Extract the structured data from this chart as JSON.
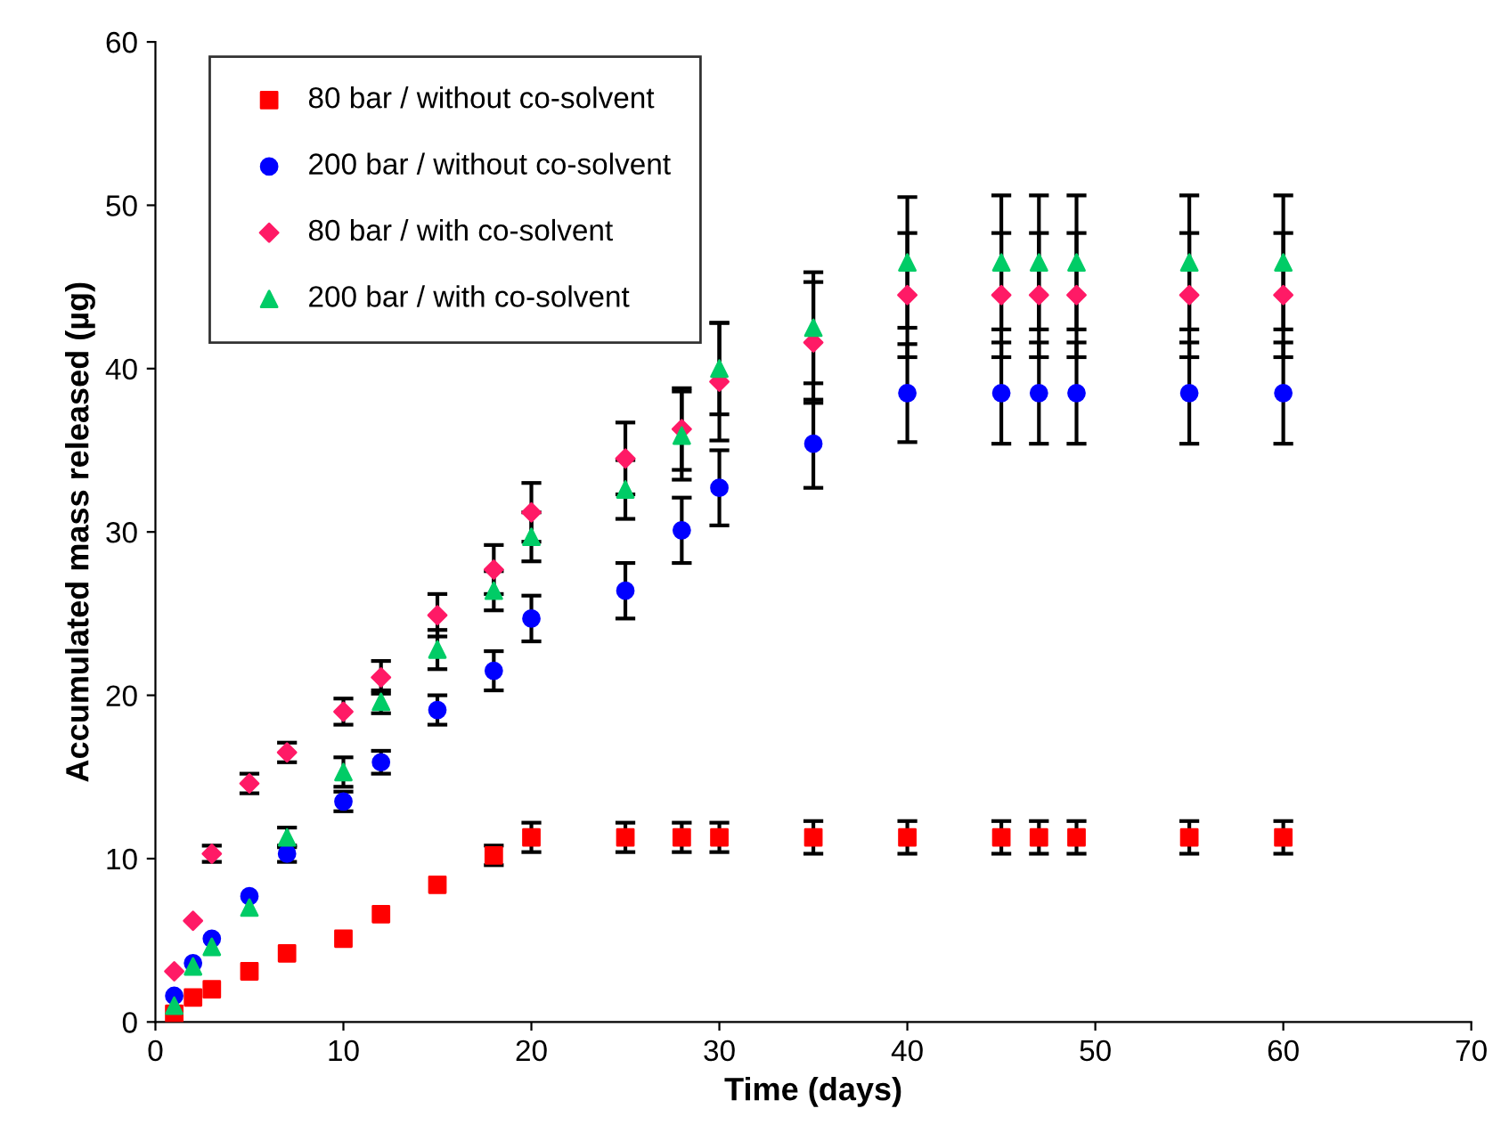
{
  "chart_data": {
    "type": "scatter",
    "xlabel": "Time (days)",
    "ylabel": "Accumulated mass released (µg)",
    "x": [
      1,
      2,
      3,
      5,
      7,
      10,
      12,
      15,
      18,
      20,
      25,
      28,
      30,
      35,
      40,
      45,
      47,
      49,
      55,
      60
    ],
    "xlim": [
      0,
      70
    ],
    "xticks": [
      0,
      10,
      20,
      30,
      40,
      50,
      60,
      70
    ],
    "ylim": [
      0,
      60
    ],
    "yticks": [
      0,
      10,
      20,
      30,
      40,
      50,
      60
    ],
    "grid": false,
    "legend": "top left",
    "series": [
      {
        "name": "80 bar / without co-solvent",
        "color": "#ff0000",
        "marker": "square",
        "values": [
          0.5,
          1.5,
          2.0,
          3.1,
          4.2,
          5.1,
          6.6,
          8.4,
          10.2,
          11.3,
          11.3,
          11.3,
          11.3,
          11.3,
          11.3,
          11.3,
          11.3,
          11.3,
          11.3,
          11.3
        ],
        "errors": [
          null,
          null,
          null,
          null,
          null,
          null,
          null,
          null,
          0.6,
          0.9,
          0.9,
          0.9,
          0.9,
          1.0,
          1.0,
          1.0,
          1.0,
          1.0,
          1.0,
          1.0
        ]
      },
      {
        "name": "200 bar / without co-solvent",
        "color": "#0000ff",
        "marker": "circle",
        "values": [
          1.6,
          3.6,
          5.1,
          7.7,
          10.3,
          13.5,
          15.9,
          19.1,
          21.5,
          24.7,
          26.4,
          30.1,
          32.7,
          35.4,
          38.5,
          38.5,
          38.5,
          38.5,
          38.5,
          38.5
        ],
        "errors": [
          null,
          null,
          null,
          null,
          0.5,
          0.6,
          0.7,
          0.9,
          1.2,
          1.4,
          1.7,
          2.0,
          2.3,
          2.7,
          3.0,
          3.1,
          3.1,
          3.1,
          3.1,
          3.1
        ]
      },
      {
        "name": "80 bar / with co-solvent",
        "color": "#ff1a66",
        "marker": "diamond",
        "values": [
          3.1,
          6.2,
          10.3,
          14.6,
          16.5,
          19.0,
          21.1,
          24.9,
          27.7,
          31.2,
          34.5,
          36.3,
          39.2,
          41.6,
          44.5,
          44.5,
          44.5,
          44.5,
          44.5,
          44.5
        ],
        "errors": [
          null,
          null,
          0.5,
          0.6,
          0.6,
          0.8,
          1.0,
          1.3,
          1.5,
          1.8,
          2.2,
          2.5,
          3.6,
          3.7,
          3.8,
          3.8,
          3.8,
          3.8,
          3.8,
          3.8
        ]
      },
      {
        "name": "200 bar / with co-solvent",
        "color": "#00cc66",
        "marker": "triangle",
        "values": [
          1.0,
          3.4,
          4.6,
          7.0,
          11.3,
          15.3,
          19.6,
          22.8,
          26.4,
          29.7,
          32.6,
          35.9,
          40.0,
          42.5,
          46.5,
          46.5,
          46.5,
          46.5,
          46.5,
          46.5
        ],
        "errors": [
          null,
          null,
          null,
          null,
          0.6,
          0.9,
          0.7,
          1.2,
          1.2,
          1.5,
          1.8,
          2.7,
          2.8,
          3.4,
          4.0,
          4.1,
          4.1,
          4.1,
          4.1,
          4.1
        ]
      }
    ]
  }
}
